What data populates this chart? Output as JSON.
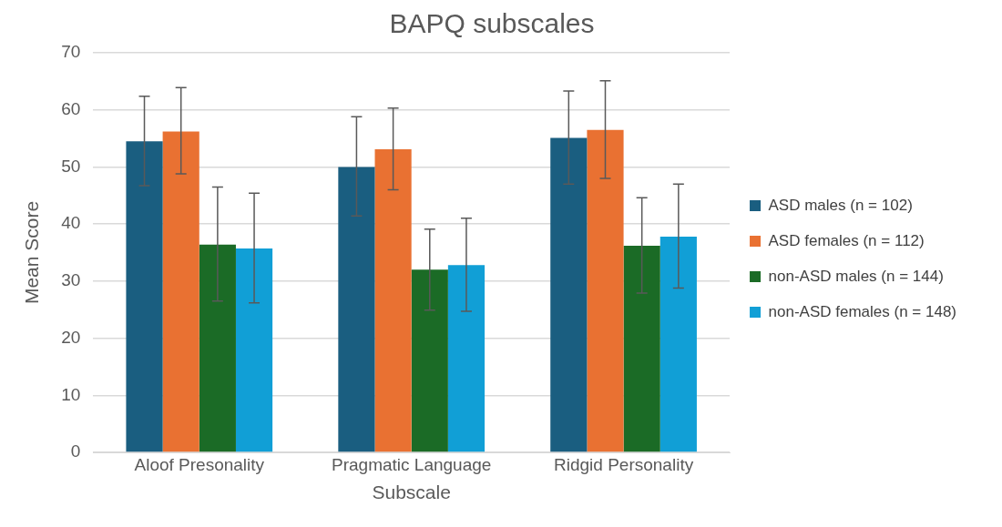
{
  "chart_data": {
    "type": "bar",
    "title": "BAPQ subscales",
    "xlabel": "Subscale",
    "ylabel": "Mean Score",
    "categories": [
      "Aloof Presonality",
      "Pragmatic Language",
      "Ridgid Personality"
    ],
    "series": [
      {
        "name": "ASD males (n = 102)",
        "color": "#1a5e80",
        "values": [
          54.5,
          50.0,
          55.1
        ],
        "errors": [
          [
            46.7,
            62.4
          ],
          [
            41.4,
            58.8
          ],
          [
            47.0,
            63.3
          ]
        ]
      },
      {
        "name": "ASD females (n = 112)",
        "color": "#e97132",
        "values": [
          56.2,
          53.1,
          56.5
        ],
        "errors": [
          [
            48.8,
            63.9
          ],
          [
            46.0,
            60.3
          ],
          [
            48.0,
            65.1
          ]
        ]
      },
      {
        "name": "non-ASD males (n = 144)",
        "color": "#1b6b26",
        "values": [
          36.4,
          32.0,
          36.2
        ],
        "errors": [
          [
            26.5,
            46.5
          ],
          [
            24.9,
            39.1
          ],
          [
            27.9,
            44.6
          ]
        ]
      },
      {
        "name": "non-ASD females (n = 148)",
        "color": "#119fd6",
        "values": [
          35.7,
          32.8,
          37.8
        ],
        "errors": [
          [
            26.2,
            45.4
          ],
          [
            24.7,
            41.0
          ],
          [
            28.8,
            47.0
          ]
        ]
      }
    ],
    "ylim": [
      0,
      70
    ],
    "yticks": [
      0,
      10,
      20,
      30,
      40,
      50,
      60,
      70
    ],
    "grid": "y",
    "legend": "right"
  }
}
